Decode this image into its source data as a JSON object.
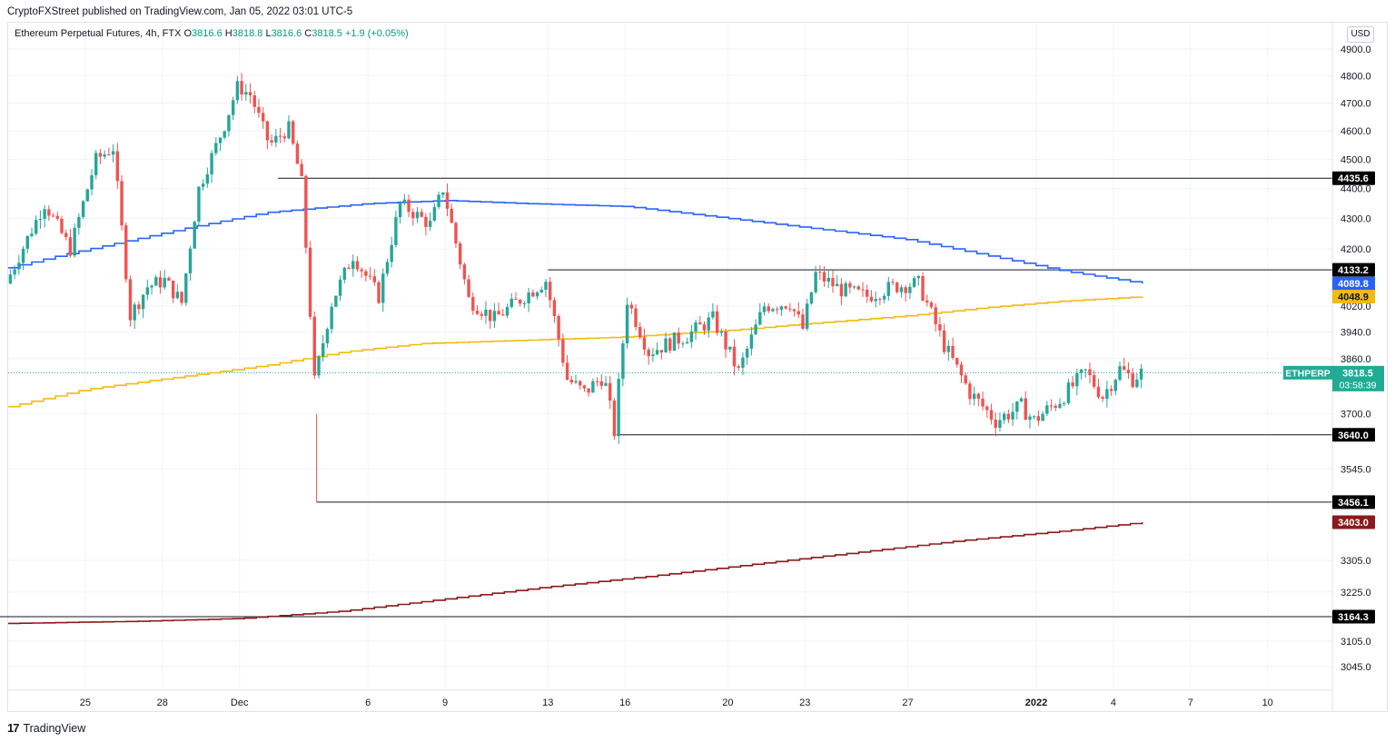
{
  "publisher": "CryptoFXStreet published on TradingView.com, Jan 05, 2022 03:01 UTC-5",
  "legend": {
    "symbol": "Ethereum Perpetual Futures, 4h, FTX",
    "o_label": "O",
    "o": "3816.6",
    "h_label": "H",
    "h": "3818.8",
    "l_label": "L",
    "l": "3816.6",
    "c_label": "C",
    "c": "3818.5",
    "change": "+1.9 (+0.05%)"
  },
  "currency_button": "USD",
  "footer": {
    "logo": "17",
    "brand": "TradingView"
  },
  "colors": {
    "up": "#26a69a",
    "down": "#ef5350",
    "blue": "#2962ff",
    "orange": "#f5b914",
    "maroon": "#8b1a1a",
    "grid": "#f0f3fa",
    "last_price": "#22ab94"
  },
  "chart_data": {
    "type": "candlestick",
    "y_axis": {
      "min": 2990,
      "max": 5000,
      "scale": "log",
      "tick_labels": [
        "4900.0",
        "4800.0",
        "4700.0",
        "4600.0",
        "4500.0",
        "4400.0",
        "4300.0",
        "4200.0",
        "4020.0",
        "3940.0",
        "3860.0",
        "3700.0",
        "3545.0",
        "3305.0",
        "3225.0",
        "3105.0",
        "3045.0"
      ]
    },
    "x_axis": {
      "ticks": [
        {
          "label": "25",
          "date": "2021-11-25"
        },
        {
          "label": "28",
          "date": "2021-11-28"
        },
        {
          "label": "Dec",
          "date": "2021-12-01"
        },
        {
          "label": "6",
          "date": "2021-12-06"
        },
        {
          "label": "9",
          "date": "2021-12-09"
        },
        {
          "label": "13",
          "date": "2021-12-13"
        },
        {
          "label": "16",
          "date": "2021-12-16"
        },
        {
          "label": "20",
          "date": "2021-12-20"
        },
        {
          "label": "23",
          "date": "2021-12-23"
        },
        {
          "label": "27",
          "date": "2021-12-27"
        },
        {
          "label": "2022",
          "date": "2022-01-01"
        },
        {
          "label": "4",
          "date": "2022-01-04"
        },
        {
          "label": "7",
          "date": "2022-01-07"
        },
        {
          "label": "10",
          "date": "2022-01-10"
        }
      ]
    },
    "price_path": [
      [
        "2021-11-22 00:00",
        4090
      ],
      [
        "2021-11-23 12:00",
        4350
      ],
      [
        "2021-11-24 12:00",
        4200
      ],
      [
        "2021-11-25 12:00",
        4500
      ],
      [
        "2021-11-26 04:00",
        4540
      ],
      [
        "2021-11-26 20:00",
        3990
      ],
      [
        "2021-11-27 12:00",
        4080
      ],
      [
        "2021-11-28 04:00",
        4100
      ],
      [
        "2021-11-28 20:00",
        4030
      ],
      [
        "2021-11-29 12:00",
        4400
      ],
      [
        "2021-11-30 12:00",
        4620
      ],
      [
        "2021-12-01 00:00",
        4760
      ],
      [
        "2021-12-01 12:00",
        4730
      ],
      [
        "2021-12-02 06:00",
        4550
      ],
      [
        "2021-12-03 00:00",
        4610
      ],
      [
        "2021-12-03 12:00",
        4420
      ],
      [
        "2021-12-04 00:00",
        3790
      ],
      [
        "2021-12-04 16:00",
        4030
      ],
      [
        "2021-12-05 12:00",
        4180
      ],
      [
        "2021-12-06 12:00",
        4050
      ],
      [
        "2021-12-07 08:00",
        4350
      ],
      [
        "2021-12-08 12:00",
        4280
      ],
      [
        "2021-12-09 00:00",
        4400
      ],
      [
        "2021-12-10 00:00",
        4040
      ],
      [
        "2021-12-11 00:00",
        3980
      ],
      [
        "2021-12-12 08:00",
        4060
      ],
      [
        "2021-12-13 00:00",
        4100
      ],
      [
        "2021-12-13 20:00",
        3800
      ],
      [
        "2021-12-14 12:00",
        3760
      ],
      [
        "2021-12-15 06:00",
        3810
      ],
      [
        "2021-12-15 16:00",
        3650
      ],
      [
        "2021-12-16 04:00",
        4040
      ],
      [
        "2021-12-17 00:00",
        3880
      ],
      [
        "2021-12-18 12:00",
        3930
      ],
      [
        "2021-12-19 12:00",
        3980
      ],
      [
        "2021-12-20 12:00",
        3820
      ],
      [
        "2021-12-21 12:00",
        4020
      ],
      [
        "2021-12-22 12:00",
        4030
      ],
      [
        "2021-12-23 00:00",
        3950
      ],
      [
        "2021-12-23 12:00",
        4120
      ],
      [
        "2021-12-24 12:00",
        4070
      ],
      [
        "2021-12-25 12:00",
        4050
      ],
      [
        "2021-12-26 12:00",
        4080
      ],
      [
        "2021-12-27 12:00",
        4090
      ],
      [
        "2021-12-28 12:00",
        3900
      ],
      [
        "2021-12-29 12:00",
        3760
      ],
      [
        "2021-12-30 12:00",
        3680
      ],
      [
        "2021-12-31 12:00",
        3720
      ],
      [
        "2022-01-01 00:00",
        3680
      ],
      [
        "2022-01-02 00:00",
        3740
      ],
      [
        "2022-01-03 00:00",
        3820
      ],
      [
        "2022-01-03 16:00",
        3750
      ],
      [
        "2022-01-04 08:00",
        3830
      ],
      [
        "2022-01-04 20:00",
        3800
      ],
      [
        "2022-01-05 03:00",
        3818.5
      ]
    ],
    "series": [
      {
        "name": "",
        "color": "blue",
        "points": [
          [
            "2021-11-22 00:00",
            4140
          ],
          [
            "2021-11-24 00:00",
            4180
          ],
          [
            "2021-11-29 00:00",
            4270
          ],
          [
            "2021-12-02 00:00",
            4320
          ],
          [
            "2021-12-06 00:00",
            4350
          ],
          [
            "2021-12-09 00:00",
            4360
          ],
          [
            "2021-12-12 00:00",
            4350
          ],
          [
            "2021-12-16 00:00",
            4340
          ],
          [
            "2021-12-20 00:00",
            4300
          ],
          [
            "2021-12-23 00:00",
            4270
          ],
          [
            "2021-12-27 00:00",
            4230
          ],
          [
            "2021-12-30 00:00",
            4180
          ],
          [
            "2022-01-02 00:00",
            4130
          ],
          [
            "2022-01-05 03:00",
            4089.8
          ]
        ]
      },
      {
        "name": "",
        "color": "orange",
        "points": [
          [
            "2021-11-22 00:00",
            3720
          ],
          [
            "2021-11-25 00:00",
            3770
          ],
          [
            "2021-11-29 00:00",
            3810
          ],
          [
            "2021-12-02 00:00",
            3840
          ],
          [
            "2021-12-05 00:00",
            3880
          ],
          [
            "2021-12-08 00:00",
            3905
          ],
          [
            "2021-12-12 00:00",
            3915
          ],
          [
            "2021-12-16 00:00",
            3925
          ],
          [
            "2021-12-20 00:00",
            3945
          ],
          [
            "2021-12-23 00:00",
            3965
          ],
          [
            "2021-12-27 00:00",
            3990
          ],
          [
            "2021-12-30 00:00",
            4015
          ],
          [
            "2022-01-02 00:00",
            4035
          ],
          [
            "2022-01-05 03:00",
            4048.9
          ]
        ]
      },
      {
        "name": "",
        "color": "maroon",
        "points": [
          [
            "2021-11-22 00:00",
            3148
          ],
          [
            "2021-11-27 00:00",
            3153
          ],
          [
            "2021-12-01 00:00",
            3160
          ],
          [
            "2021-12-05 00:00",
            3178
          ],
          [
            "2021-12-09 00:00",
            3208
          ],
          [
            "2021-12-13 00:00",
            3238
          ],
          [
            "2021-12-17 00:00",
            3265
          ],
          [
            "2021-12-21 00:00",
            3295
          ],
          [
            "2021-12-25 00:00",
            3325
          ],
          [
            "2021-12-29 00:00",
            3355
          ],
          [
            "2022-01-02 00:00",
            3380
          ],
          [
            "2022-01-05 03:00",
            3403.0
          ]
        ]
      }
    ],
    "levels": [
      {
        "value": "4435.6",
        "price": 4435.6,
        "from": "2021-12-02 12:00"
      },
      {
        "value": "4133.2",
        "price": 4133.2,
        "from": "2021-12-13 00:00"
      },
      {
        "value": "3640.0",
        "price": 3640.0,
        "from": "2021-12-15 16:00"
      },
      {
        "value": "3456.1",
        "price": 3456.1,
        "from": "2021-12-04 00:00"
      },
      {
        "value": "3164.3",
        "price": 3164.3,
        "from": "2021-11-21 00:00"
      }
    ],
    "price_labels": [
      {
        "value": "4089.8",
        "price": 4089.8,
        "color": "blue",
        "text_color": "#ffffff"
      },
      {
        "value": "4048.9",
        "price": 4048.9,
        "color": "orange",
        "text_color": "#131722"
      },
      {
        "value": "3403.0",
        "price": 3403.0,
        "color": "maroon",
        "text_color": "#ffffff"
      }
    ],
    "last_price": {
      "symbol": "ETHPERP",
      "price": "3818.5",
      "value": 3818.5,
      "countdown": "03:58:39"
    },
    "wick_low": {
      "date": "2021-12-04 00:00",
      "low": 3456.1
    }
  }
}
